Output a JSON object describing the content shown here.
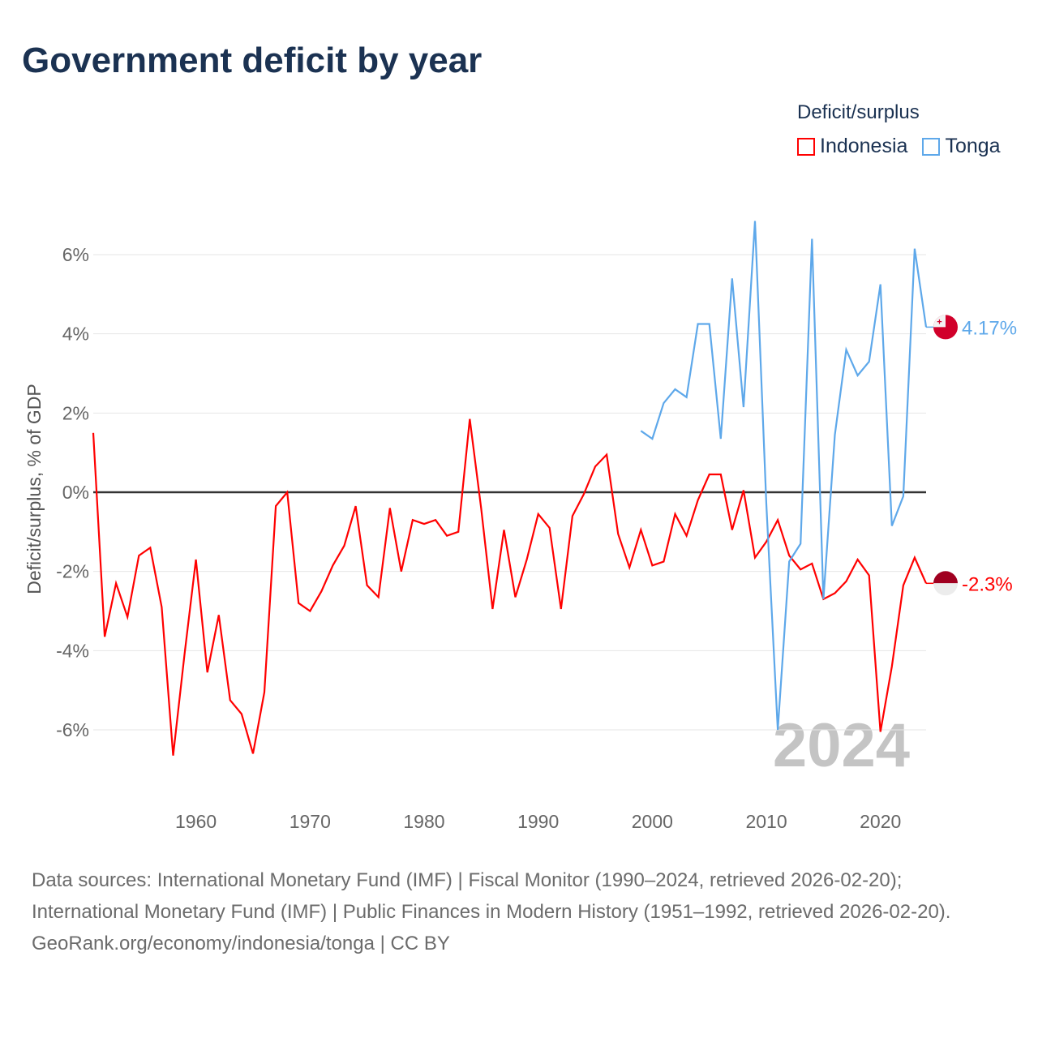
{
  "title": "Government deficit by year",
  "legend": {
    "title": "Deficit/surplus",
    "items": [
      {
        "name": "Indonesia",
        "color": "#ff0000"
      },
      {
        "name": "Tonga",
        "color": "#5ea8ea"
      }
    ]
  },
  "footer": {
    "sources": "Data sources: International Monetary Fund (IMF) | Fiscal Monitor (1990–2024, retrieved 2026-02-20); International Monetary Fund (IMF) | Public Finances in Modern History (1951–1992, retrieved 2026-02-20).",
    "credit": "GeoRank.org/economy/indonesia/tonga | CC BY"
  },
  "chart_data": {
    "type": "line",
    "title": "Government deficit by year",
    "xlabel": "",
    "ylabel": "Deficit/surplus, % of GDP",
    "xlim": [
      1951,
      2024
    ],
    "ylim": [
      -7.5,
      7.5
    ],
    "xticks": [
      1960,
      1970,
      1980,
      1990,
      2000,
      2010,
      2020
    ],
    "yticks": [
      {
        "v": 6,
        "label": "6%"
      },
      {
        "v": 4,
        "label": "4%"
      },
      {
        "v": 2,
        "label": "2%"
      },
      {
        "v": 0,
        "label": "0%"
      },
      {
        "v": -2,
        "label": "-2%"
      },
      {
        "v": -4,
        "label": "-4%"
      },
      {
        "v": -6,
        "label": "-6%"
      }
    ],
    "grid": true,
    "legend_position": "top-right",
    "year_watermark": "2024",
    "series": [
      {
        "name": "Indonesia",
        "color": "#ff0000",
        "end_label": "-2.3%",
        "start_year": 1951,
        "values": [
          1.5,
          -3.65,
          -2.3,
          -3.15,
          -1.6,
          -1.4,
          -2.9,
          -6.65,
          -4.1,
          -1.7,
          -4.55,
          -3.1,
          -5.25,
          -5.6,
          -6.6,
          -5.05,
          -0.35,
          0,
          -2.8,
          -3.0,
          -2.5,
          -1.85,
          -1.35,
          -0.35,
          -2.35,
          -2.65,
          -0.4,
          -2.0,
          -0.7,
          -0.8,
          -0.7,
          -1.1,
          -1.0,
          1.85,
          -0.4,
          -2.95,
          -0.95,
          -2.65,
          -1.7,
          -0.55,
          -0.9,
          -2.95,
          -0.6,
          -0.05,
          0.65,
          0.95,
          -1.05,
          -1.9,
          -0.95,
          -1.85,
          -1.75,
          -0.55,
          -1.1,
          -0.2,
          0.45,
          0.45,
          -0.95,
          0.05,
          -1.65,
          -1.25,
          -0.7,
          -1.6,
          -1.95,
          -1.8,
          -2.7,
          -2.55,
          -2.25,
          -1.7,
          -2.1,
          -6.05,
          -4.4,
          -2.35,
          -1.65,
          -2.3
        ]
      },
      {
        "name": "Tonga",
        "color": "#5ea8ea",
        "end_label": "4.17%",
        "start_year": 1999,
        "values": [
          1.55,
          1.35,
          2.25,
          2.6,
          2.4,
          4.25,
          4.25,
          1.35,
          5.4,
          2.15,
          6.85,
          -0.3,
          -6.0,
          -1.75,
          -1.3,
          6.4,
          -2.7,
          1.45,
          3.6,
          2.95,
          3.3,
          5.25,
          -0.85,
          -0.1,
          6.15,
          4.17
        ]
      }
    ]
  }
}
